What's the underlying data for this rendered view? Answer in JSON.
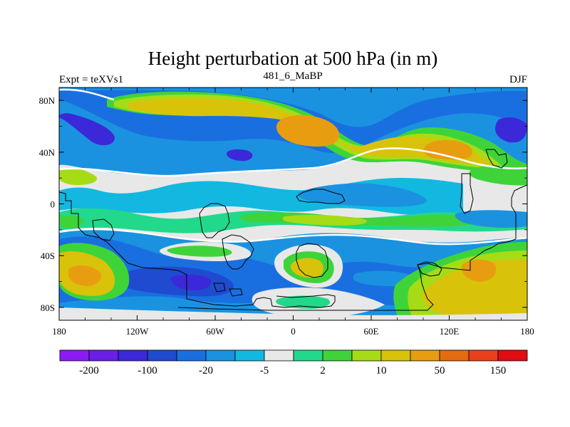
{
  "chart_data": {
    "type": "heatmap",
    "title": "Height perturbation at 500 hPa (in m)",
    "left_subtitle": "Expt = teXVs1",
    "center_subtitle": "481_6_MaBP",
    "right_subtitle": "DJF",
    "x_ticks": [
      "180",
      "120W",
      "60W",
      "0",
      "60E",
      "120E",
      "180"
    ],
    "x_tick_values": [
      -180,
      -120,
      -60,
      0,
      60,
      120,
      180
    ],
    "y_ticks": [
      "80N",
      "40N",
      "0",
      "40S",
      "80S"
    ],
    "y_tick_values": [
      80,
      40,
      0,
      -40,
      -80
    ],
    "xlim": [
      -180,
      180
    ],
    "ylim": [
      -90,
      90
    ],
    "colorbar": {
      "colors": [
        "#8a1bf2",
        "#6a1ee6",
        "#3b28d8",
        "#1f4bd0",
        "#1a6fe0",
        "#1a92e0",
        "#12b8e0",
        "#e8e8e8",
        "#22d88a",
        "#3fd33a",
        "#a5dc16",
        "#d9c20a",
        "#e89d10",
        "#e46b10",
        "#e8401a",
        "#e00d12"
      ],
      "labels": [
        "-200",
        "-100",
        "-20",
        "-5",
        "2",
        "10",
        "50",
        "150"
      ]
    }
  }
}
